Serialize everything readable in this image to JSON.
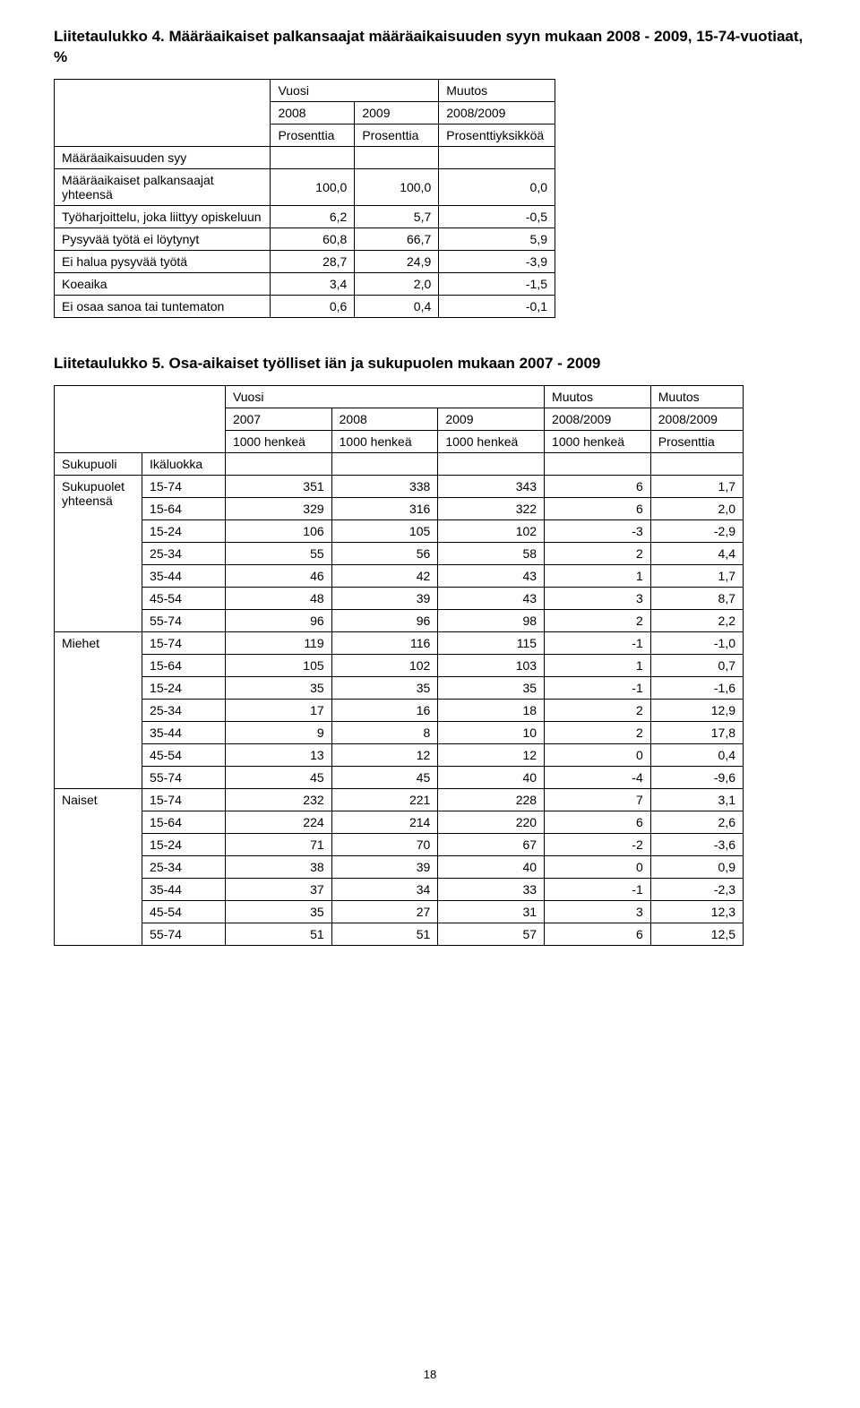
{
  "table4": {
    "title": "Liitetaulukko 4. Määräaikaiset palkansaajat määräaikaisuuden syyn mukaan 2008 - 2009, 15-74-vuotiaat, %",
    "header_top": {
      "vuosi": "Vuosi",
      "muutos": "Muutos"
    },
    "header_years": {
      "y2008": "2008",
      "y2009": "2009",
      "chg": "2008/2009"
    },
    "header_units": {
      "u1": "Prosenttia",
      "u2": "Prosenttia",
      "u3": "Prosenttiyksikköä"
    },
    "rows": [
      {
        "label": "Määräaikaisuuden syy",
        "v1": "",
        "v2": "",
        "v3": ""
      },
      {
        "label": "Määräaikaiset palkansaajat yhteensä",
        "v1": "100,0",
        "v2": "100,0",
        "v3": "0,0"
      },
      {
        "label": "Työharjoittelu, joka liittyy opiskeluun",
        "v1": "6,2",
        "v2": "5,7",
        "v3": "-0,5"
      },
      {
        "label": "Pysyvää työtä ei löytynyt",
        "v1": "60,8",
        "v2": "66,7",
        "v3": "5,9"
      },
      {
        "label": "Ei halua pysyvää työtä",
        "v1": "28,7",
        "v2": "24,9",
        "v3": "-3,9"
      },
      {
        "label": "Koeaika",
        "v1": "3,4",
        "v2": "2,0",
        "v3": "-1,5"
      },
      {
        "label": "Ei osaa sanoa tai tuntematon",
        "v1": "0,6",
        "v2": "0,4",
        "v3": "-0,1"
      }
    ]
  },
  "table5": {
    "title": "Liitetaulukko 5. Osa-aikaiset työlliset iän ja sukupuolen mukaan 2007 - 2009",
    "header_top": {
      "vuosi": "Vuosi",
      "muutos1": "Muutos",
      "muutos2": "Muutos"
    },
    "header_years": {
      "y2007": "2007",
      "y2008": "2008",
      "y2009": "2009",
      "chg1": "2008/2009",
      "chg2": "2008/2009"
    },
    "header_units": {
      "u1": "1000 henkeä",
      "u2": "1000 henkeä",
      "u3": "1000 henkeä",
      "u4": "1000 henkeä",
      "u5": "Prosenttia"
    },
    "row_labels": {
      "sukupuoli": "Sukupuoli",
      "ikaluokka": "Ikäluokka"
    },
    "groups": [
      {
        "name": "Sukupuolet yhteensä",
        "rows": [
          {
            "age": "15-74",
            "v": [
              "351",
              "338",
              "343",
              "6",
              "1,7"
            ]
          },
          {
            "age": "15-64",
            "v": [
              "329",
              "316",
              "322",
              "6",
              "2,0"
            ]
          },
          {
            "age": "15-24",
            "v": [
              "106",
              "105",
              "102",
              "-3",
              "-2,9"
            ]
          },
          {
            "age": "25-34",
            "v": [
              "55",
              "56",
              "58",
              "2",
              "4,4"
            ]
          },
          {
            "age": "35-44",
            "v": [
              "46",
              "42",
              "43",
              "1",
              "1,7"
            ]
          },
          {
            "age": "45-54",
            "v": [
              "48",
              "39",
              "43",
              "3",
              "8,7"
            ]
          },
          {
            "age": "55-74",
            "v": [
              "96",
              "96",
              "98",
              "2",
              "2,2"
            ]
          }
        ]
      },
      {
        "name": "Miehet",
        "rows": [
          {
            "age": "15-74",
            "v": [
              "119",
              "116",
              "115",
              "-1",
              "-1,0"
            ]
          },
          {
            "age": "15-64",
            "v": [
              "105",
              "102",
              "103",
              "1",
              "0,7"
            ]
          },
          {
            "age": "15-24",
            "v": [
              "35",
              "35",
              "35",
              "-1",
              "-1,6"
            ]
          },
          {
            "age": "25-34",
            "v": [
              "17",
              "16",
              "18",
              "2",
              "12,9"
            ]
          },
          {
            "age": "35-44",
            "v": [
              "9",
              "8",
              "10",
              "2",
              "17,8"
            ]
          },
          {
            "age": "45-54",
            "v": [
              "13",
              "12",
              "12",
              "0",
              "0,4"
            ]
          },
          {
            "age": "55-74",
            "v": [
              "45",
              "45",
              "40",
              "-4",
              "-9,6"
            ]
          }
        ]
      },
      {
        "name": "Naiset",
        "rows": [
          {
            "age": "15-74",
            "v": [
              "232",
              "221",
              "228",
              "7",
              "3,1"
            ]
          },
          {
            "age": "15-64",
            "v": [
              "224",
              "214",
              "220",
              "6",
              "2,6"
            ]
          },
          {
            "age": "15-24",
            "v": [
              "71",
              "70",
              "67",
              "-2",
              "-3,6"
            ]
          },
          {
            "age": "25-34",
            "v": [
              "38",
              "39",
              "40",
              "0",
              "0,9"
            ]
          },
          {
            "age": "35-44",
            "v": [
              "37",
              "34",
              "33",
              "-1",
              "-2,3"
            ]
          },
          {
            "age": "45-54",
            "v": [
              "35",
              "27",
              "31",
              "3",
              "12,3"
            ]
          },
          {
            "age": "55-74",
            "v": [
              "51",
              "51",
              "57",
              "6",
              "12,5"
            ]
          }
        ]
      }
    ]
  },
  "page_number": "18"
}
